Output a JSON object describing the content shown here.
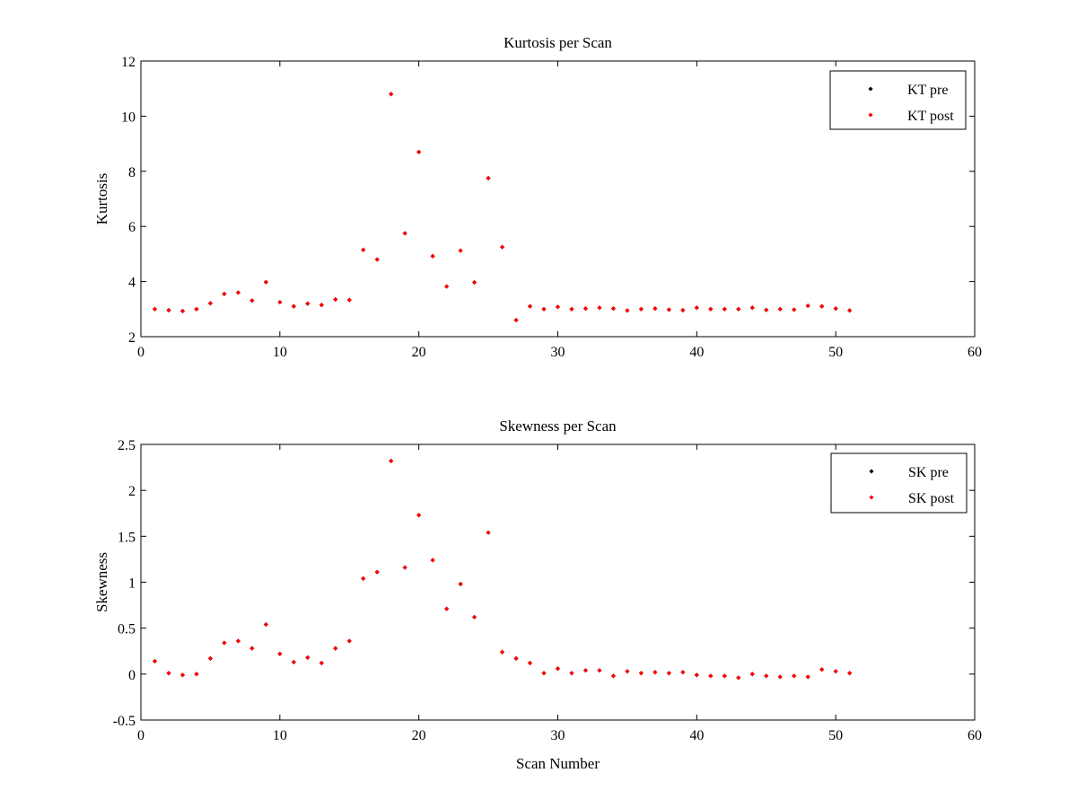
{
  "colors": {
    "pre": "#000000",
    "post": "#ff0000",
    "axes": "#000000",
    "background": "#ffffff"
  },
  "chart_data": [
    {
      "type": "scatter",
      "title": "Kurtosis per Scan",
      "xlabel": "",
      "ylabel": "Kurtosis",
      "xlim": [
        0,
        60
      ],
      "ylim": [
        2,
        12
      ],
      "xticks": [
        0,
        10,
        20,
        30,
        40,
        50,
        60
      ],
      "yticks": [
        2,
        4,
        6,
        8,
        10,
        12
      ],
      "xtick_labels": [
        "0",
        "10",
        "20",
        "30",
        "40",
        "50",
        "60"
      ],
      "ytick_labels": [
        "2",
        "4",
        "6",
        "8",
        "10",
        "12"
      ],
      "grid": false,
      "legend_position": "top-right",
      "x": [
        1,
        2,
        3,
        4,
        5,
        6,
        7,
        8,
        9,
        10,
        11,
        12,
        13,
        14,
        15,
        16,
        17,
        18,
        19,
        20,
        21,
        22,
        23,
        24,
        25,
        26,
        27,
        28,
        29,
        30,
        31,
        32,
        33,
        34,
        35,
        36,
        37,
        38,
        39,
        40,
        41,
        42,
        43,
        44,
        45,
        46,
        47,
        48,
        49,
        50,
        51
      ],
      "series": [
        {
          "name": "KT pre",
          "color": "#000000",
          "values": [
            3.0,
            2.96,
            2.93,
            3.0,
            3.21,
            3.55,
            3.6,
            3.31,
            3.98,
            3.25,
            3.1,
            3.2,
            3.15,
            3.35,
            3.33,
            5.15,
            4.8,
            10.8,
            5.75,
            8.7,
            4.92,
            3.82,
            5.12,
            3.97,
            7.75,
            5.25,
            2.6,
            3.1,
            3.0,
            3.08,
            3.0,
            3.02,
            3.05,
            3.02,
            2.95,
            3.0,
            3.02,
            2.98,
            2.96,
            3.05,
            3.0,
            3.0,
            3.0,
            3.05,
            2.97,
            3.0,
            2.98,
            3.12,
            3.1,
            3.02,
            2.95
          ]
        },
        {
          "name": "KT post",
          "color": "#ff0000",
          "values": [
            3.0,
            2.96,
            2.93,
            3.0,
            3.21,
            3.55,
            3.6,
            3.31,
            3.98,
            3.25,
            3.1,
            3.2,
            3.15,
            3.35,
            3.33,
            5.15,
            4.8,
            10.8,
            5.75,
            8.7,
            4.92,
            3.82,
            5.12,
            3.97,
            7.75,
            5.25,
            2.6,
            3.1,
            3.0,
            3.08,
            3.0,
            3.02,
            3.05,
            3.02,
            2.95,
            3.0,
            3.02,
            2.98,
            2.96,
            3.05,
            3.0,
            3.0,
            3.0,
            3.05,
            2.97,
            3.0,
            2.98,
            3.12,
            3.1,
            3.02,
            2.95
          ]
        }
      ]
    },
    {
      "type": "scatter",
      "title": "Skewness per Scan",
      "xlabel": "Scan Number",
      "ylabel": "Skewness",
      "xlim": [
        0,
        60
      ],
      "ylim": [
        -0.5,
        2.5
      ],
      "xticks": [
        0,
        10,
        20,
        30,
        40,
        50,
        60
      ],
      "yticks": [
        -0.5,
        0,
        0.5,
        1,
        1.5,
        2,
        2.5
      ],
      "xtick_labels": [
        "0",
        "10",
        "20",
        "30",
        "40",
        "50",
        "60"
      ],
      "ytick_labels": [
        "-0.5",
        "0",
        "0.5",
        "1",
        "1.5",
        "2",
        "2.5"
      ],
      "grid": false,
      "legend_position": "top-right",
      "x": [
        1,
        2,
        3,
        4,
        5,
        6,
        7,
        8,
        9,
        10,
        11,
        12,
        13,
        14,
        15,
        16,
        17,
        18,
        19,
        20,
        21,
        22,
        23,
        24,
        25,
        26,
        27,
        28,
        29,
        30,
        31,
        32,
        33,
        34,
        35,
        36,
        37,
        38,
        39,
        40,
        41,
        42,
        43,
        44,
        45,
        46,
        47,
        48,
        49,
        50,
        51
      ],
      "series": [
        {
          "name": "SK pre",
          "color": "#000000",
          "values": [
            0.14,
            0.01,
            -0.01,
            0.0,
            0.17,
            0.34,
            0.36,
            0.28,
            0.54,
            0.22,
            0.13,
            0.18,
            0.12,
            0.28,
            0.36,
            1.04,
            1.11,
            2.32,
            1.16,
            1.73,
            1.24,
            0.71,
            0.98,
            0.62,
            1.54,
            0.24,
            0.17,
            0.12,
            0.01,
            0.06,
            0.01,
            0.04,
            0.04,
            -0.02,
            0.03,
            0.01,
            0.02,
            0.01,
            0.02,
            -0.01,
            -0.02,
            -0.02,
            -0.04,
            0.0,
            -0.02,
            -0.03,
            -0.02,
            -0.03,
            0.05,
            0.03,
            0.01
          ]
        },
        {
          "name": "SK post",
          "color": "#ff0000",
          "values": [
            0.14,
            0.01,
            -0.01,
            0.0,
            0.17,
            0.34,
            0.36,
            0.28,
            0.54,
            0.22,
            0.13,
            0.18,
            0.12,
            0.28,
            0.36,
            1.04,
            1.11,
            2.32,
            1.16,
            1.73,
            1.24,
            0.71,
            0.98,
            0.62,
            1.54,
            0.24,
            0.17,
            0.12,
            0.01,
            0.06,
            0.01,
            0.04,
            0.04,
            -0.02,
            0.03,
            0.01,
            0.02,
            0.01,
            0.02,
            -0.01,
            -0.02,
            -0.02,
            -0.04,
            0.0,
            -0.02,
            -0.03,
            -0.02,
            -0.03,
            0.05,
            0.03,
            0.01
          ]
        }
      ]
    }
  ]
}
